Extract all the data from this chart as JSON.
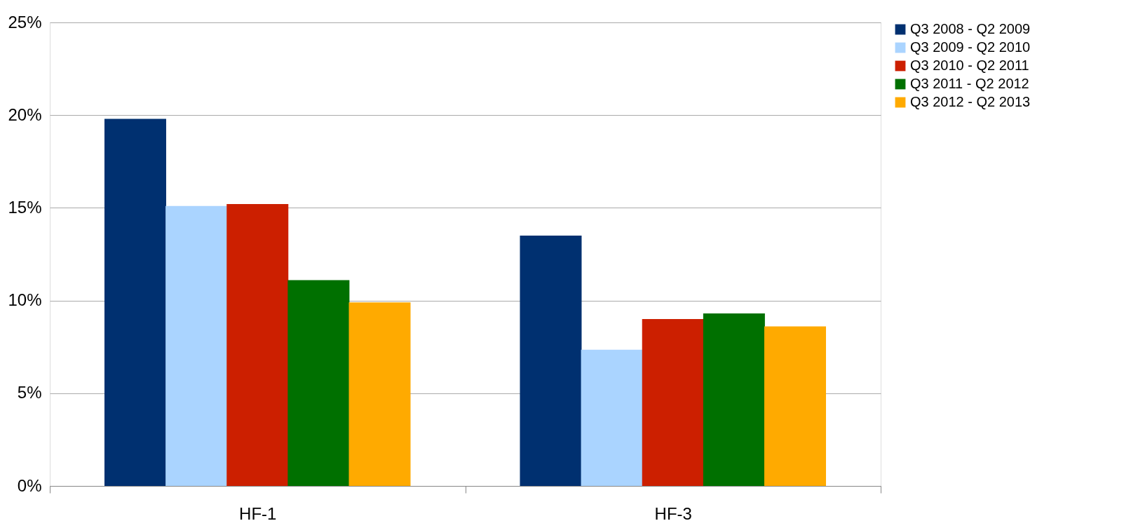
{
  "chart_data": {
    "type": "bar",
    "categories": [
      "HF-1",
      "HF-3"
    ],
    "series": [
      {
        "name": "Q3 2008 - Q2 2009",
        "color": "#003070",
        "values": [
          19.8,
          13.5
        ]
      },
      {
        "name": "Q3 2009 - Q2 2010",
        "color": "#aad4ff",
        "values": [
          15.1,
          7.35
        ]
      },
      {
        "name": "Q3 2010 - Q2 2011",
        "color": "#cc1f00",
        "values": [
          15.2,
          9.0
        ]
      },
      {
        "name": "Q3 2011 - Q2 2012",
        "color": "#007000",
        "values": [
          11.1,
          9.3
        ]
      },
      {
        "name": "Q3 2012 - Q2 2013",
        "color": "#ffaa00",
        "values": [
          9.9,
          8.6
        ]
      }
    ],
    "ylim": [
      0,
      25
    ],
    "yticks": [
      {
        "value": 0,
        "label": "0%"
      },
      {
        "value": 5,
        "label": "5%"
      },
      {
        "value": 10,
        "label": "10%"
      },
      {
        "value": 15,
        "label": "15%"
      },
      {
        "value": 20,
        "label": "20%"
      },
      {
        "value": 25,
        "label": "25%"
      }
    ],
    "grid": "y",
    "legend": "right"
  }
}
